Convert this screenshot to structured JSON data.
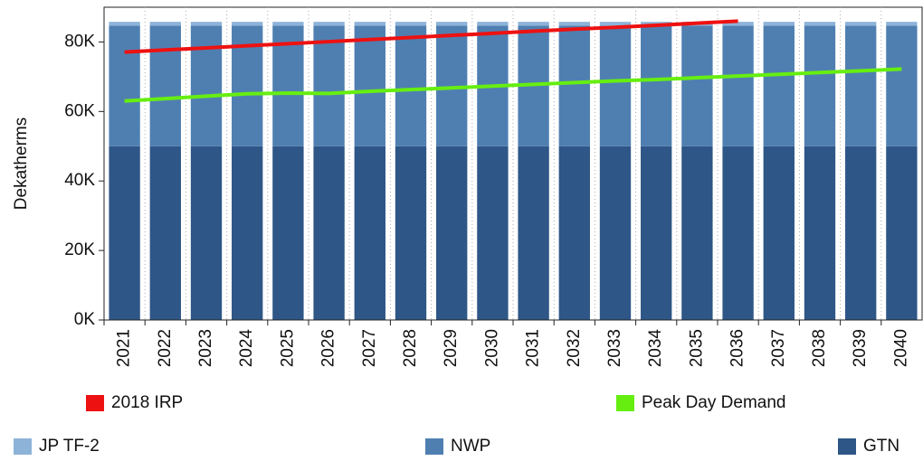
{
  "chart_data": {
    "type": "bar",
    "stacked": true,
    "y_label": "Dekatherms",
    "categories": [
      "2021",
      "2022",
      "2023",
      "2024",
      "2025",
      "2026",
      "2027",
      "2028",
      "2029",
      "2030",
      "2031",
      "2032",
      "2033",
      "2034",
      "2035",
      "2036",
      "2037",
      "2038",
      "2039",
      "2040"
    ],
    "series": [
      {
        "name": "JP TF-2",
        "color": "#8db3d9",
        "type": "bar",
        "values": [
          1100,
          1100,
          1100,
          1100,
          1100,
          1100,
          1100,
          1100,
          1100,
          1100,
          1100,
          1100,
          1100,
          1100,
          1100,
          1100,
          1100,
          1100,
          1100,
          1100
        ]
      },
      {
        "name": "NWP",
        "color": "#4f7fb1",
        "type": "bar",
        "values": [
          34700,
          34700,
          34700,
          34700,
          34700,
          34700,
          34700,
          34700,
          34700,
          34700,
          34700,
          34700,
          34700,
          34700,
          34700,
          34700,
          34700,
          34700,
          34700,
          34700
        ]
      },
      {
        "name": "GTN",
        "color": "#2e5686",
        "type": "bar",
        "values": [
          50000,
          50000,
          50000,
          50000,
          50000,
          50000,
          50000,
          50000,
          50000,
          50000,
          50000,
          50000,
          50000,
          50000,
          50000,
          50000,
          50000,
          50000,
          50000,
          50000
        ]
      },
      {
        "name": "2018 IRP",
        "color": "#ee1111",
        "type": "line",
        "values": [
          77100,
          77700,
          78300,
          78900,
          79500,
          80100,
          80700,
          81300,
          81900,
          82500,
          83100,
          83700,
          84200,
          84800,
          85400,
          86000,
          null,
          null,
          null,
          null
        ]
      },
      {
        "name": "Peak Day Demand",
        "color": "#66ee11",
        "type": "line",
        "values": [
          63000,
          63700,
          64400,
          65100,
          65300,
          65200,
          65800,
          66300,
          66800,
          67300,
          67800,
          68300,
          68800,
          69200,
          69700,
          70200,
          70700,
          71200,
          71700,
          72200
        ]
      }
    ],
    "ylim": [
      0,
      90000
    ],
    "yticks": [
      {
        "value": 0,
        "label": "0K"
      },
      {
        "value": 20000,
        "label": "20K"
      },
      {
        "value": 40000,
        "label": "40K"
      },
      {
        "value": 60000,
        "label": "60K"
      },
      {
        "value": 80000,
        "label": "80K"
      }
    ],
    "grid": true
  }
}
